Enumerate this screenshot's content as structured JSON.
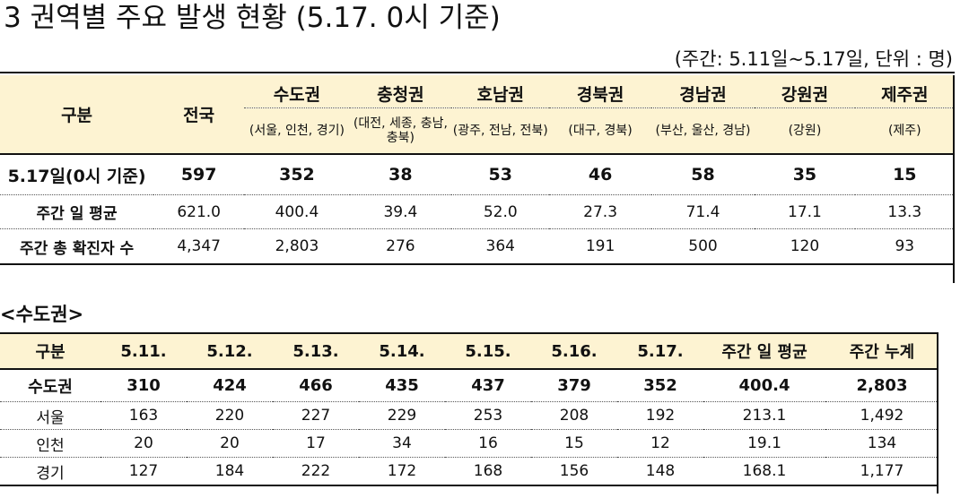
{
  "title": "3  권역별 주요 발생 현황 (5.17. 0시 기준)",
  "unit_note": "(주간: 5.11일~5.17일, 단위 : 명)",
  "table1": {
    "corner_label": "구분",
    "national_label": "전국",
    "regions": [
      {
        "name": "수도권",
        "sub": "(서울, 인천, 경기)"
      },
      {
        "name": "충청권",
        "sub": "(대전, 세종, 충남, 충북)"
      },
      {
        "name": "호남권",
        "sub": "(광주, 전남, 전북)"
      },
      {
        "name": "경북권",
        "sub": "(대구, 경북)"
      },
      {
        "name": "경남권",
        "sub": "(부산, 울산, 경남)"
      },
      {
        "name": "강원권",
        "sub": "(강원)"
      },
      {
        "name": "제주권",
        "sub": "(제주)"
      }
    ],
    "rows": [
      {
        "label": "5.17일(0시 기준)",
        "cells": [
          "597",
          "352",
          "38",
          "53",
          "46",
          "58",
          "35",
          "15"
        ]
      },
      {
        "label": "주간 일 평균",
        "cells": [
          "621.0",
          "400.4",
          "39.4",
          "52.0",
          "27.3",
          "71.4",
          "17.1",
          "13.3"
        ]
      },
      {
        "label": "주간 총 확진자 수",
        "cells": [
          "4,347",
          "2,803",
          "276",
          "364",
          "191",
          "500",
          "120",
          "93"
        ]
      }
    ]
  },
  "section_label": "<수도권>",
  "table2": {
    "headers": [
      "구분",
      "5.11.",
      "5.12.",
      "5.13.",
      "5.14.",
      "5.15.",
      "5.16.",
      "5.17.",
      "주간 일 평균",
      "주간 누계"
    ],
    "rows": [
      {
        "cells": [
          "수도권",
          "310",
          "424",
          "466",
          "435",
          "437",
          "379",
          "352",
          "400.4",
          "2,803"
        ]
      },
      {
        "cells": [
          "서울",
          "163",
          "220",
          "227",
          "229",
          "253",
          "208",
          "192",
          "213.1",
          "1,492"
        ]
      },
      {
        "cells": [
          "인천",
          "20",
          "20",
          "17",
          "34",
          "16",
          "15",
          "12",
          "19.1",
          "134"
        ]
      },
      {
        "cells": [
          "경기",
          "127",
          "184",
          "222",
          "172",
          "168",
          "156",
          "148",
          "168.1",
          "1,177"
        ]
      }
    ]
  }
}
